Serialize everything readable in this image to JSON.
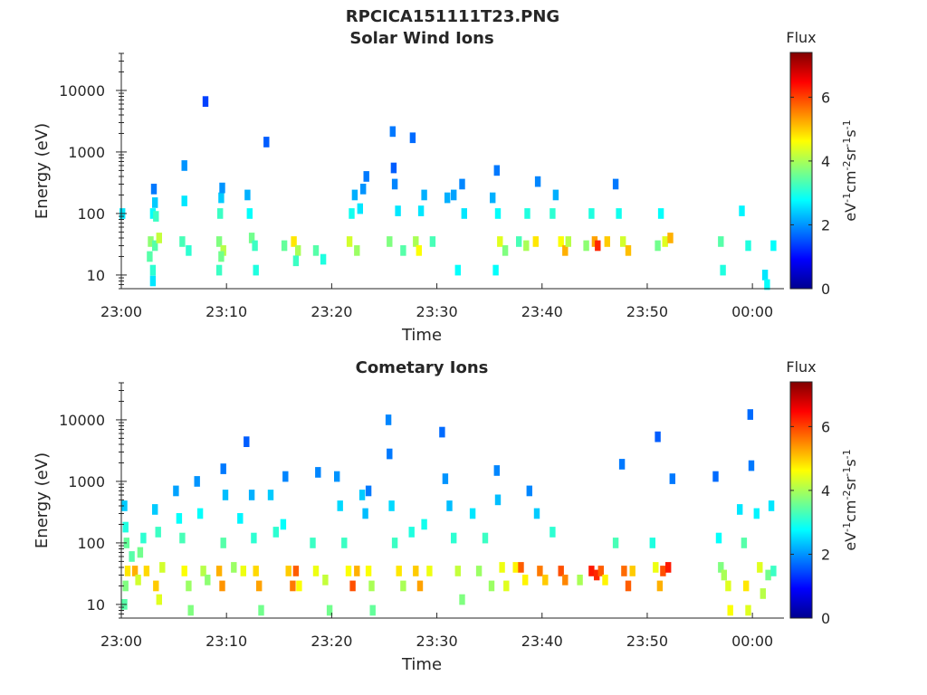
{
  "figure_title": "RPCICA151111T23.PNG",
  "chart_data": [
    {
      "type": "heatmap",
      "title": "Solar Wind Ions",
      "xlabel": "Time",
      "ylabel": "Energy (eV)",
      "x_ticks": [
        "23:00",
        "23:10",
        "23:20",
        "23:30",
        "23:40",
        "23:50",
        "00:00"
      ],
      "y_ticks": [
        "10",
        "100",
        "1000",
        "10000"
      ],
      "y_scale": "log",
      "ylim": [
        6,
        40000
      ],
      "colorbar": {
        "title": "Flux",
        "label": "eV-1cm-2sr-1s-1",
        "ticks": [
          "0",
          "2",
          "4",
          "6"
        ],
        "range": [
          0,
          7.4
        ],
        "colormap": "jet"
      },
      "cells": [
        [
          0.1,
          100,
          2.6
        ],
        [
          3.0,
          100,
          2.8
        ],
        [
          3.3,
          90,
          3.2
        ],
        [
          3.2,
          150,
          2.4
        ],
        [
          3.1,
          250,
          1.8
        ],
        [
          2.8,
          35,
          3.8
        ],
        [
          3.2,
          30,
          3.4
        ],
        [
          3.6,
          40,
          4.2
        ],
        [
          2.7,
          20,
          3.4
        ],
        [
          3.0,
          12,
          3.1
        ],
        [
          3.0,
          8,
          2.6
        ],
        [
          5.8,
          35,
          3.3
        ],
        [
          6.4,
          25,
          3.1
        ],
        [
          6.0,
          160,
          2.6
        ],
        [
          6.0,
          600,
          2.0
        ],
        [
          8.0,
          6600,
          1.4
        ],
        [
          9.3,
          35,
          3.7
        ],
        [
          9.7,
          25,
          4.1
        ],
        [
          9.5,
          20,
          3.6
        ],
        [
          9.3,
          12,
          3.2
        ],
        [
          9.4,
          100,
          3.2
        ],
        [
          9.5,
          180,
          2.4
        ],
        [
          9.6,
          260,
          2.0
        ],
        [
          12.0,
          200,
          2.2
        ],
        [
          12.2,
          100,
          2.8
        ],
        [
          12.4,
          40,
          3.6
        ],
        [
          12.7,
          30,
          3.2
        ],
        [
          12.8,
          12,
          3.0
        ],
        [
          13.8,
          1450,
          1.6
        ],
        [
          15.5,
          30,
          3.5
        ],
        [
          16.4,
          35,
          4.8
        ],
        [
          16.8,
          25,
          4.0
        ],
        [
          16.6,
          17,
          3.2
        ],
        [
          18.5,
          25,
          3.4
        ],
        [
          19.2,
          18,
          3.0
        ],
        [
          21.7,
          35,
          4.3
        ],
        [
          21.9,
          100,
          2.9
        ],
        [
          22.2,
          200,
          2.2
        ],
        [
          22.4,
          25,
          3.9
        ],
        [
          22.7,
          120,
          2.6
        ],
        [
          23.0,
          250,
          2.0
        ],
        [
          23.3,
          400,
          1.8
        ],
        [
          25.5,
          35,
          3.7
        ],
        [
          25.8,
          2150,
          1.8
        ],
        [
          25.9,
          550,
          1.6
        ],
        [
          26.0,
          300,
          1.9
        ],
        [
          26.3,
          110,
          2.6
        ],
        [
          26.8,
          25,
          3.4
        ],
        [
          27.7,
          1700,
          1.7
        ],
        [
          28.0,
          35,
          4.0
        ],
        [
          28.3,
          25,
          4.6
        ],
        [
          28.5,
          110,
          2.6
        ],
        [
          28.8,
          200,
          2.2
        ],
        [
          29.6,
          35,
          3.3
        ],
        [
          31.0,
          180,
          2.2
        ],
        [
          31.6,
          200,
          2.1
        ],
        [
          32.4,
          300,
          1.9
        ],
        [
          32.6,
          100,
          2.6
        ],
        [
          32.0,
          12,
          2.8
        ],
        [
          35.3,
          180,
          2.2
        ],
        [
          35.6,
          12,
          2.8
        ],
        [
          35.7,
          500,
          1.8
        ],
        [
          35.8,
          100,
          2.8
        ],
        [
          36.0,
          35,
          4.4
        ],
        [
          36.5,
          25,
          3.7
        ],
        [
          37.8,
          35,
          3.3
        ],
        [
          38.5,
          30,
          4.0
        ],
        [
          38.6,
          100,
          3.0
        ],
        [
          39.4,
          35,
          4.8
        ],
        [
          39.6,
          330,
          1.9
        ],
        [
          41.0,
          100,
          3.1
        ],
        [
          41.3,
          200,
          2.2
        ],
        [
          41.8,
          35,
          4.6
        ],
        [
          42.2,
          25,
          5.2
        ],
        [
          42.5,
          35,
          4.1
        ],
        [
          44.2,
          30,
          3.8
        ],
        [
          44.7,
          100,
          3.0
        ],
        [
          45.0,
          35,
          5.3
        ],
        [
          45.3,
          30,
          6.2
        ],
        [
          46.2,
          35,
          5.0
        ],
        [
          47.0,
          300,
          1.8
        ],
        [
          47.3,
          100,
          2.9
        ],
        [
          47.7,
          35,
          4.3
        ],
        [
          48.2,
          25,
          5.1
        ],
        [
          51.0,
          30,
          3.6
        ],
        [
          51.3,
          100,
          2.8
        ],
        [
          51.7,
          35,
          4.4
        ],
        [
          52.2,
          40,
          5.2
        ],
        [
          57.0,
          35,
          3.4
        ],
        [
          57.2,
          12,
          3.0
        ],
        [
          59.0,
          110,
          2.7
        ],
        [
          59.6,
          30,
          3.0
        ],
        [
          61.2,
          10,
          2.6
        ],
        [
          61.4,
          7,
          2.8
        ],
        [
          62.0,
          30,
          2.8
        ]
      ]
    },
    {
      "type": "heatmap",
      "title": "Cometary Ions",
      "xlabel": "Time",
      "ylabel": "Energy (eV)",
      "x_ticks": [
        "23:00",
        "23:10",
        "23:20",
        "23:30",
        "23:40",
        "23:50",
        "00:00"
      ],
      "y_ticks": [
        "10",
        "100",
        "1000",
        "10000"
      ],
      "y_scale": "log",
      "ylim": [
        6,
        40000
      ],
      "colorbar": {
        "title": "Flux",
        "label": "eV-1cm-2sr-1s-1",
        "ticks": [
          "0",
          "2",
          "4",
          "6"
        ],
        "range": [
          0,
          7.4
        ],
        "colormap": "jet"
      },
      "cells": [
        [
          0.3,
          400,
          2.4
        ],
        [
          0.4,
          180,
          3.0
        ],
        [
          0.5,
          100,
          3.5
        ],
        [
          0.6,
          35,
          4.8
        ],
        [
          0.4,
          20,
          3.7
        ],
        [
          0.3,
          10,
          3.4
        ],
        [
          1.0,
          60,
          3.4
        ],
        [
          1.3,
          35,
          5.2
        ],
        [
          1.6,
          25,
          4.3
        ],
        [
          1.8,
          70,
          3.6
        ],
        [
          2.1,
          120,
          3.1
        ],
        [
          2.4,
          35,
          4.9
        ],
        [
          3.2,
          350,
          2.4
        ],
        [
          3.5,
          150,
          3.2
        ],
        [
          3.3,
          20,
          5.0
        ],
        [
          3.6,
          12,
          4.4
        ],
        [
          3.9,
          40,
          4.3
        ],
        [
          5.2,
          700,
          2.1
        ],
        [
          5.5,
          250,
          2.8
        ],
        [
          5.8,
          120,
          3.3
        ],
        [
          6.0,
          35,
          4.6
        ],
        [
          6.4,
          20,
          3.9
        ],
        [
          6.6,
          8,
          3.7
        ],
        [
          7.2,
          1000,
          2.0
        ],
        [
          7.5,
          300,
          2.8
        ],
        [
          7.8,
          35,
          4.1
        ],
        [
          8.2,
          25,
          3.8
        ],
        [
          9.3,
          35,
          5.2
        ],
        [
          9.6,
          20,
          5.4
        ],
        [
          9.7,
          100,
          3.4
        ],
        [
          9.9,
          600,
          2.3
        ],
        [
          9.7,
          1600,
          1.8
        ],
        [
          10.7,
          40,
          3.9
        ],
        [
          11.3,
          250,
          2.7
        ],
        [
          11.6,
          35,
          4.5
        ],
        [
          11.9,
          4400,
          1.6
        ],
        [
          12.4,
          600,
          2.2
        ],
        [
          12.6,
          120,
          3.1
        ],
        [
          12.8,
          35,
          4.9
        ],
        [
          13.1,
          20,
          5.3
        ],
        [
          13.3,
          8,
          3.6
        ],
        [
          14.2,
          600,
          2.4
        ],
        [
          14.7,
          150,
          3.1
        ],
        [
          15.4,
          200,
          2.8
        ],
        [
          15.6,
          1200,
          1.9
        ],
        [
          15.9,
          35,
          5.0
        ],
        [
          16.3,
          20,
          5.6
        ],
        [
          16.6,
          35,
          5.8
        ],
        [
          16.9,
          20,
          4.6
        ],
        [
          18.2,
          100,
          3.2
        ],
        [
          18.5,
          35,
          4.5
        ],
        [
          18.7,
          1400,
          1.9
        ],
        [
          19.4,
          25,
          4.2
        ],
        [
          19.8,
          8,
          3.6
        ],
        [
          20.5,
          1200,
          2.0
        ],
        [
          20.8,
          400,
          2.5
        ],
        [
          21.2,
          100,
          3.2
        ],
        [
          21.6,
          35,
          4.6
        ],
        [
          22.0,
          20,
          5.9
        ],
        [
          22.4,
          35,
          5.2
        ],
        [
          22.9,
          600,
          2.4
        ],
        [
          23.2,
          300,
          2.3
        ],
        [
          23.5,
          700,
          1.8
        ],
        [
          23.5,
          35,
          4.6
        ],
        [
          23.8,
          20,
          4.0
        ],
        [
          23.9,
          8,
          3.5
        ],
        [
          25.4,
          10000,
          1.9
        ],
        [
          25.5,
          2800,
          1.8
        ],
        [
          25.7,
          400,
          2.5
        ],
        [
          26.0,
          100,
          3.2
        ],
        [
          26.4,
          35,
          4.8
        ],
        [
          26.8,
          20,
          4.0
        ],
        [
          27.6,
          150,
          3.0
        ],
        [
          28.0,
          35,
          5.0
        ],
        [
          28.4,
          20,
          5.3
        ],
        [
          28.8,
          200,
          2.9
        ],
        [
          29.3,
          35,
          4.5
        ],
        [
          30.5,
          6300,
          1.7
        ],
        [
          30.8,
          1100,
          2.0
        ],
        [
          31.2,
          400,
          2.3
        ],
        [
          31.6,
          120,
          3.1
        ],
        [
          32.0,
          35,
          4.2
        ],
        [
          32.4,
          12,
          3.7
        ],
        [
          33.4,
          300,
          2.6
        ],
        [
          34.0,
          35,
          3.9
        ],
        [
          34.6,
          120,
          3.2
        ],
        [
          35.2,
          20,
          3.9
        ],
        [
          35.7,
          1500,
          1.9
        ],
        [
          35.8,
          500,
          2.3
        ],
        [
          36.2,
          40,
          4.5
        ],
        [
          36.6,
          20,
          4.4
        ],
        [
          37.5,
          40,
          4.7
        ],
        [
          38.0,
          40,
          5.8
        ],
        [
          38.4,
          25,
          4.7
        ],
        [
          38.8,
          700,
          1.9
        ],
        [
          39.5,
          300,
          2.4
        ],
        [
          39.8,
          35,
          5.6
        ],
        [
          40.3,
          25,
          5.0
        ],
        [
          41.0,
          150,
          3.1
        ],
        [
          41.8,
          35,
          5.9
        ],
        [
          42.2,
          25,
          5.5
        ],
        [
          43.6,
          25,
          4.0
        ],
        [
          44.7,
          35,
          6.3
        ],
        [
          45.2,
          30,
          6.2
        ],
        [
          45.6,
          35,
          5.8
        ],
        [
          46.0,
          25,
          4.7
        ],
        [
          47.0,
          100,
          3.3
        ],
        [
          47.6,
          1900,
          1.8
        ],
        [
          47.8,
          35,
          5.7
        ],
        [
          48.2,
          20,
          5.8
        ],
        [
          48.6,
          35,
          5.0
        ],
        [
          50.5,
          100,
          3.0
        ],
        [
          50.8,
          40,
          4.5
        ],
        [
          51.2,
          20,
          5.2
        ],
        [
          51.5,
          35,
          5.9
        ],
        [
          52.0,
          40,
          6.3
        ],
        [
          52.4,
          1100,
          1.8
        ],
        [
          51.0,
          5300,
          1.6
        ],
        [
          56.5,
          1200,
          1.7
        ],
        [
          56.8,
          120,
          2.8
        ],
        [
          57.0,
          40,
          3.7
        ],
        [
          57.3,
          30,
          4.0
        ],
        [
          57.7,
          20,
          4.4
        ],
        [
          57.9,
          8,
          4.6
        ],
        [
          58.8,
          350,
          2.6
        ],
        [
          59.2,
          100,
          3.4
        ],
        [
          59.4,
          20,
          4.8
        ],
        [
          59.6,
          8,
          4.4
        ],
        [
          59.8,
          12200,
          1.7
        ],
        [
          59.9,
          1800,
          1.8
        ],
        [
          60.4,
          300,
          2.7
        ],
        [
          60.7,
          40,
          4.4
        ],
        [
          61.0,
          15,
          4.1
        ],
        [
          61.5,
          30,
          3.6
        ],
        [
          61.8,
          400,
          2.6
        ],
        [
          62.0,
          35,
          3.2
        ]
      ]
    }
  ]
}
